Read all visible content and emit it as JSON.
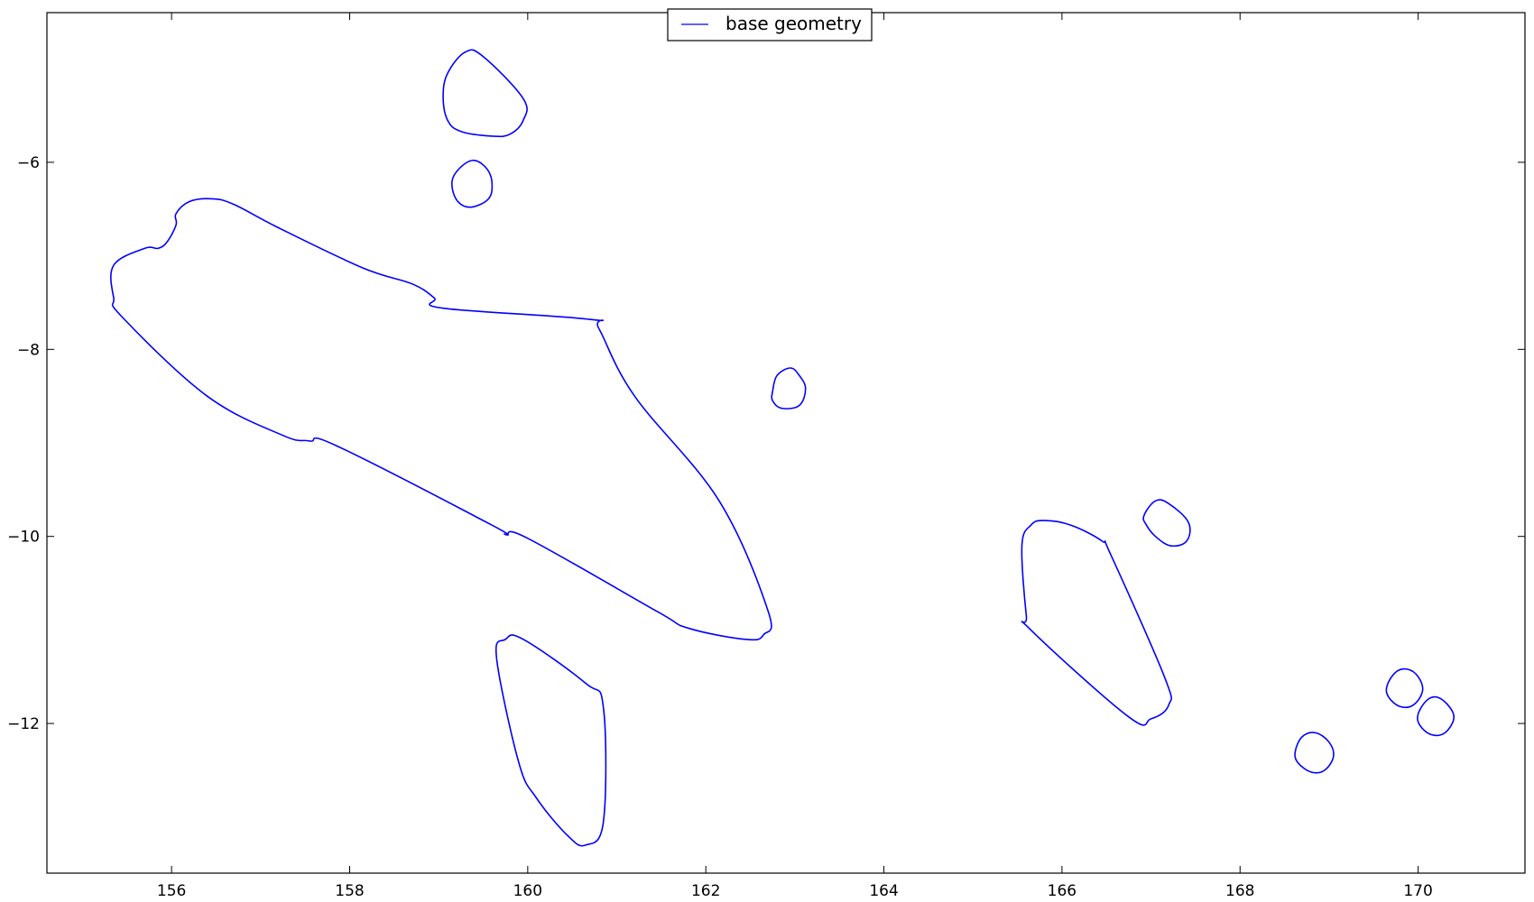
{
  "chart_data": {
    "type": "line",
    "title": "",
    "xlabel": "",
    "ylabel": "",
    "xlim": [
      154.6,
      171.2
    ],
    "ylim": [
      -13.6,
      -4.4
    ],
    "xticks": [
      156,
      158,
      160,
      162,
      164,
      166,
      168,
      170
    ],
    "yticks": [
      -6,
      -8,
      -10,
      -12
    ],
    "grid": false,
    "legend": {
      "placement": "top-center",
      "entries": [
        "base geometry"
      ]
    },
    "series": [
      {
        "name": "base geometry",
        "color": "#0000ff",
        "polygons": [
          [
            [
              155.35,
              -7.1
            ],
            [
              155.7,
              -6.92
            ],
            [
              155.85,
              -6.92
            ],
            [
              155.95,
              -6.85
            ],
            [
              156.05,
              -6.67
            ],
            [
              156.05,
              -6.55
            ],
            [
              156.2,
              -6.42
            ],
            [
              156.45,
              -6.39
            ],
            [
              156.7,
              -6.45
            ],
            [
              157.2,
              -6.7
            ],
            [
              158.15,
              -7.13
            ],
            [
              158.7,
              -7.3
            ],
            [
              158.95,
              -7.45
            ],
            [
              159.05,
              -7.56
            ],
            [
              160.7,
              -7.68
            ],
            [
              160.8,
              -7.78
            ],
            [
              161.2,
              -8.5
            ],
            [
              162.15,
              -9.62
            ],
            [
              162.7,
              -10.8
            ],
            [
              162.65,
              -11.05
            ],
            [
              162.45,
              -11.1
            ],
            [
              161.8,
              -10.98
            ],
            [
              161.45,
              -10.8
            ],
            [
              160.0,
              -10.02
            ],
            [
              159.75,
              -9.98
            ],
            [
              159.6,
              -9.88
            ],
            [
              157.85,
              -9.03
            ],
            [
              157.55,
              -8.98
            ],
            [
              157.25,
              -8.92
            ],
            [
              156.4,
              -8.5
            ],
            [
              155.45,
              -7.66
            ],
            [
              155.35,
              -7.45
            ]
          ],
          [
            [
              159.05,
              -5.3
            ],
            [
              159.1,
              -5.05
            ],
            [
              159.3,
              -4.82
            ],
            [
              159.5,
              -4.87
            ],
            [
              159.95,
              -5.32
            ],
            [
              159.95,
              -5.55
            ],
            [
              159.8,
              -5.7
            ],
            [
              159.6,
              -5.72
            ],
            [
              159.25,
              -5.67
            ],
            [
              159.1,
              -5.55
            ]
          ],
          [
            [
              159.15,
              -6.2
            ],
            [
              159.25,
              -6.05
            ],
            [
              159.4,
              -5.98
            ],
            [
              159.55,
              -6.08
            ],
            [
              159.6,
              -6.25
            ],
            [
              159.55,
              -6.4
            ],
            [
              159.35,
              -6.48
            ],
            [
              159.2,
              -6.4
            ]
          ],
          [
            [
              159.65,
              -11.3
            ],
            [
              159.75,
              -11.1
            ],
            [
              159.95,
              -11.1
            ],
            [
              160.65,
              -11.57
            ],
            [
              160.85,
              -11.83
            ],
            [
              160.85,
              -13.05
            ],
            [
              160.65,
              -13.3
            ],
            [
              160.45,
              -13.2
            ],
            [
              160.1,
              -12.8
            ],
            [
              159.9,
              -12.42
            ]
          ],
          [
            [
              162.75,
              -8.45
            ],
            [
              162.8,
              -8.28
            ],
            [
              162.95,
              -8.2
            ],
            [
              163.05,
              -8.28
            ],
            [
              163.12,
              -8.42
            ],
            [
              163.05,
              -8.6
            ],
            [
              162.85,
              -8.63
            ],
            [
              162.75,
              -8.55
            ]
          ],
          [
            [
              165.55,
              -10.1
            ],
            [
              165.65,
              -9.88
            ],
            [
              165.8,
              -9.83
            ],
            [
              166.1,
              -9.88
            ],
            [
              166.45,
              -10.05
            ],
            [
              166.55,
              -10.2
            ],
            [
              167.15,
              -11.5
            ],
            [
              167.2,
              -11.8
            ],
            [
              167.0,
              -11.95
            ],
            [
              166.75,
              -11.93
            ],
            [
              165.65,
              -11.0
            ],
            [
              165.6,
              -10.85
            ]
          ],
          [
            [
              166.92,
              -9.78
            ],
            [
              167.05,
              -9.62
            ],
            [
              167.2,
              -9.65
            ],
            [
              167.42,
              -9.85
            ],
            [
              167.4,
              -10.05
            ],
            [
              167.22,
              -10.1
            ],
            [
              167.05,
              -10.0
            ],
            [
              166.95,
              -9.88
            ]
          ],
          [
            [
              168.62,
              -12.3
            ],
            [
              168.7,
              -12.14
            ],
            [
              168.85,
              -12.1
            ],
            [
              169.0,
              -12.2
            ],
            [
              169.05,
              -12.35
            ],
            [
              168.95,
              -12.5
            ],
            [
              168.8,
              -12.52
            ],
            [
              168.65,
              -12.42
            ]
          ],
          [
            [
              169.65,
              -11.6
            ],
            [
              169.75,
              -11.45
            ],
            [
              169.88,
              -11.42
            ],
            [
              170.0,
              -11.5
            ],
            [
              170.05,
              -11.65
            ],
            [
              169.95,
              -11.8
            ],
            [
              169.8,
              -11.82
            ],
            [
              169.67,
              -11.72
            ]
          ],
          [
            [
              170.0,
              -11.9
            ],
            [
              170.1,
              -11.75
            ],
            [
              170.22,
              -11.72
            ],
            [
              170.35,
              -11.82
            ],
            [
              170.4,
              -11.95
            ],
            [
              170.3,
              -12.1
            ],
            [
              170.15,
              -12.12
            ],
            [
              170.02,
              -12.02
            ]
          ]
        ]
      }
    ]
  }
}
